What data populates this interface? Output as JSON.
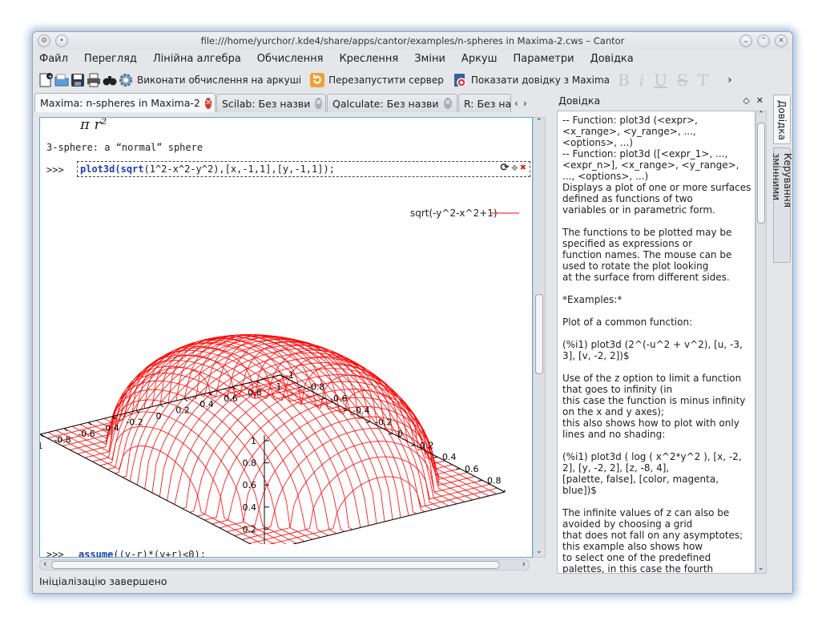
{
  "window": {
    "title": "file:///home/yurchor/.kde4/share/apps/cantor/examples/n-spheres in Maxima-2.cws – Cantor",
    "controls": [
      "⌄",
      "⌃",
      "✕"
    ]
  },
  "menu": [
    "Файл",
    "Перегляд",
    "Лінійна алгебра",
    "Обчислення",
    "Креслення",
    "Зміни",
    "Аркуш",
    "Параметри",
    "Довідка"
  ],
  "toolbar": {
    "evaluate_label": "Виконати обчислення на аркуші",
    "restart_label": "Перезапустити сервер",
    "help_label": "Показати довідку з Maxima",
    "format_glyphs": [
      "B",
      "i",
      "U",
      "S",
      "T"
    ],
    "overflow": "›"
  },
  "tabs": [
    {
      "label": "Maxima: n-spheres in Maxima-2",
      "active": true
    },
    {
      "label": "Scilab: Без назви",
      "active": false
    },
    {
      "label": "Qalculate: Без назви",
      "active": false
    },
    {
      "label": "R: Без на",
      "active": false
    }
  ],
  "worksheet": {
    "formula": "π r²",
    "heading": "3-sphere: a “normal” sphere",
    "prompt": ">>>",
    "command_fn": "plot3d",
    "command_sqrt": "sqrt",
    "command_rest": "(1^2-x^2-y^2),[x,-1,1],[y,-1,1]);",
    "command_open": "(",
    "next_prompt": ">>>",
    "next_command_fn": "assume",
    "next_command_rest": "((y-r)*(y+r)<0);"
  },
  "chart_data": {
    "type": "surface",
    "function": "sqrt(1-x^2-y^2)",
    "legend": "sqrt(-y^2-x^2+1)",
    "legend_color": "#ff0000",
    "x_range": [
      -1,
      1
    ],
    "y_range": [
      -1,
      1
    ],
    "z_ticks": [
      "0",
      "0.2",
      "0.4",
      "0.6",
      "0.8",
      "1"
    ],
    "x_ticks": [
      "-1",
      "-0.8",
      "-0.6",
      "-0.4",
      "-0.2",
      "0",
      "0.2",
      "0.4",
      "0.6",
      "0.8",
      "1"
    ],
    "y_ticks": [
      "-1",
      "-0.8",
      "-0.6",
      "-0.4",
      "-0.2",
      "0",
      "0.2",
      "0.4",
      "0.6",
      "0.8"
    ]
  },
  "status": "Ініціалізацію завершено",
  "help": {
    "title": "Довідка",
    "text": "-- Function: plot3d (<expr>,\n<x_range>, <y_range>, ...,\n<options>, ...)\n-- Function: plot3d ([<expr_1>, ...,\n<expr_n>], <x_range>, <y_range>,\n..., <options>, ...)\nDisplays a plot of one or more surfaces\ndefined as functions of two\nvariables or in parametric form.\n\nThe functions to be plotted may be\nspecified as expressions or\nfunction names. The mouse can be\nused to rotate the plot looking\nat the surface from different sides.\n\n*Examples:*\n\nPlot of a common function:\n\n(%i1) plot3d (2^(-u^2 + v^2), [u, -3,\n3], [v, -2, 2])$\n\nUse of the z option to limit a function\nthat goes to infinity (in\nthis case the function is minus infinity\non the x and y axes);\nthis also shows how to plot with only\nlines and no shading:\n\n(%i1) plot3d ( log ( x^2*y^2 ), [x, -2,\n2], [y, -2, 2], [z, -8, 4],\n[palette, false], [color, magenta,\nblue])$\n\nThe infinite values of z can also be\navoided by choosing a grid\nthat does not fall on any asymptotes;\nthis example also shows how\nto select one of the predefined\npalettes, in this case the fourth"
  },
  "side_tabs": [
    "Довідка",
    "Керування змінними"
  ]
}
